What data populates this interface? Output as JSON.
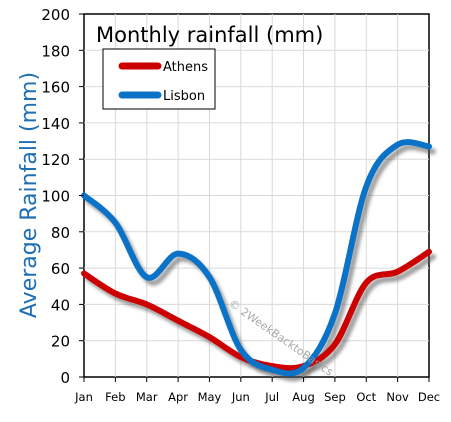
{
  "chart_data": {
    "type": "line",
    "title": "Monthly rainfall (mm)",
    "xlabel": "",
    "ylabel": "Average Rainfall (mm)",
    "categories": [
      "Jan",
      "Feb",
      "Mar",
      "Apr",
      "May",
      "Jun",
      "Jul",
      "Aug",
      "Sep",
      "Oct",
      "Nov",
      "Dec"
    ],
    "ylim": [
      0,
      200
    ],
    "yticks": [
      0,
      20,
      40,
      60,
      80,
      100,
      120,
      140,
      160,
      180,
      200
    ],
    "grid": true,
    "legend_position": "top-left",
    "series": [
      {
        "name": "Athens",
        "color": "#cc0000",
        "values": [
          57,
          46,
          40,
          31,
          22,
          11,
          6,
          6,
          18,
          52,
          58,
          69
        ]
      },
      {
        "name": "Lisbon",
        "color": "#0b73c7",
        "values": [
          100,
          85,
          55,
          68,
          55,
          15,
          4,
          5,
          35,
          105,
          128,
          127
        ]
      }
    ],
    "watermark": "© 2WeekBacktoBasics"
  },
  "colors": {
    "ylabel": "#1f6fb5",
    "grid": "#d9d9d9",
    "axis": "#000000",
    "background": "#ffffff"
  }
}
